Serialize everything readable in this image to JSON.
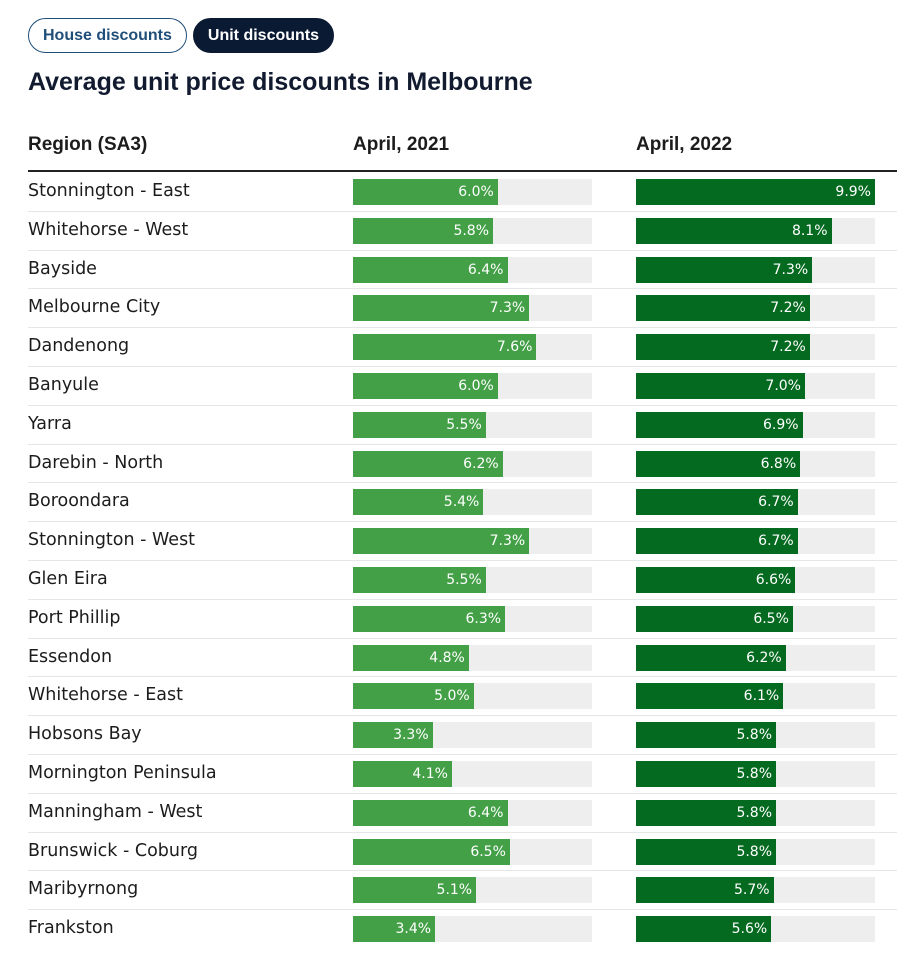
{
  "tabs": [
    {
      "label": "House discounts",
      "active": false
    },
    {
      "label": "Unit discounts",
      "active": true
    }
  ],
  "colors": {
    "april_2021": "#43a047",
    "april_2022": "#046a1f",
    "track": "#eeeeee",
    "active_tab": "#0b1a33"
  },
  "chart_data": {
    "type": "bar",
    "title": "Average unit price discounts in Melbourne",
    "columns": {
      "region": "Region (SA3)",
      "first": "April, 2021",
      "second": "April, 2022"
    },
    "scale_max": 9.9,
    "unit": "%",
    "categories": [
      "Stonnington - East",
      "Whitehorse - West",
      "Bayside",
      "Melbourne City",
      "Dandenong",
      "Banyule",
      "Yarra",
      "Darebin - North",
      "Boroondara",
      "Stonnington - West",
      "Glen Eira",
      "Port Phillip",
      "Essendon",
      "Whitehorse - East",
      "Hobsons Bay",
      "Mornington Peninsula",
      "Manningham - West",
      "Brunswick - Coburg",
      "Maribyrnong",
      "Frankston"
    ],
    "series": [
      {
        "name": "April, 2021",
        "values": [
          6.0,
          5.8,
          6.4,
          7.3,
          7.6,
          6.0,
          5.5,
          6.2,
          5.4,
          7.3,
          5.5,
          6.3,
          4.8,
          5.0,
          3.3,
          4.1,
          6.4,
          6.5,
          5.1,
          3.4
        ]
      },
      {
        "name": "April, 2022",
        "values": [
          9.9,
          8.1,
          7.3,
          7.2,
          7.2,
          7.0,
          6.9,
          6.8,
          6.7,
          6.7,
          6.6,
          6.5,
          6.2,
          6.1,
          5.8,
          5.8,
          5.8,
          5.8,
          5.7,
          5.6
        ]
      }
    ]
  }
}
